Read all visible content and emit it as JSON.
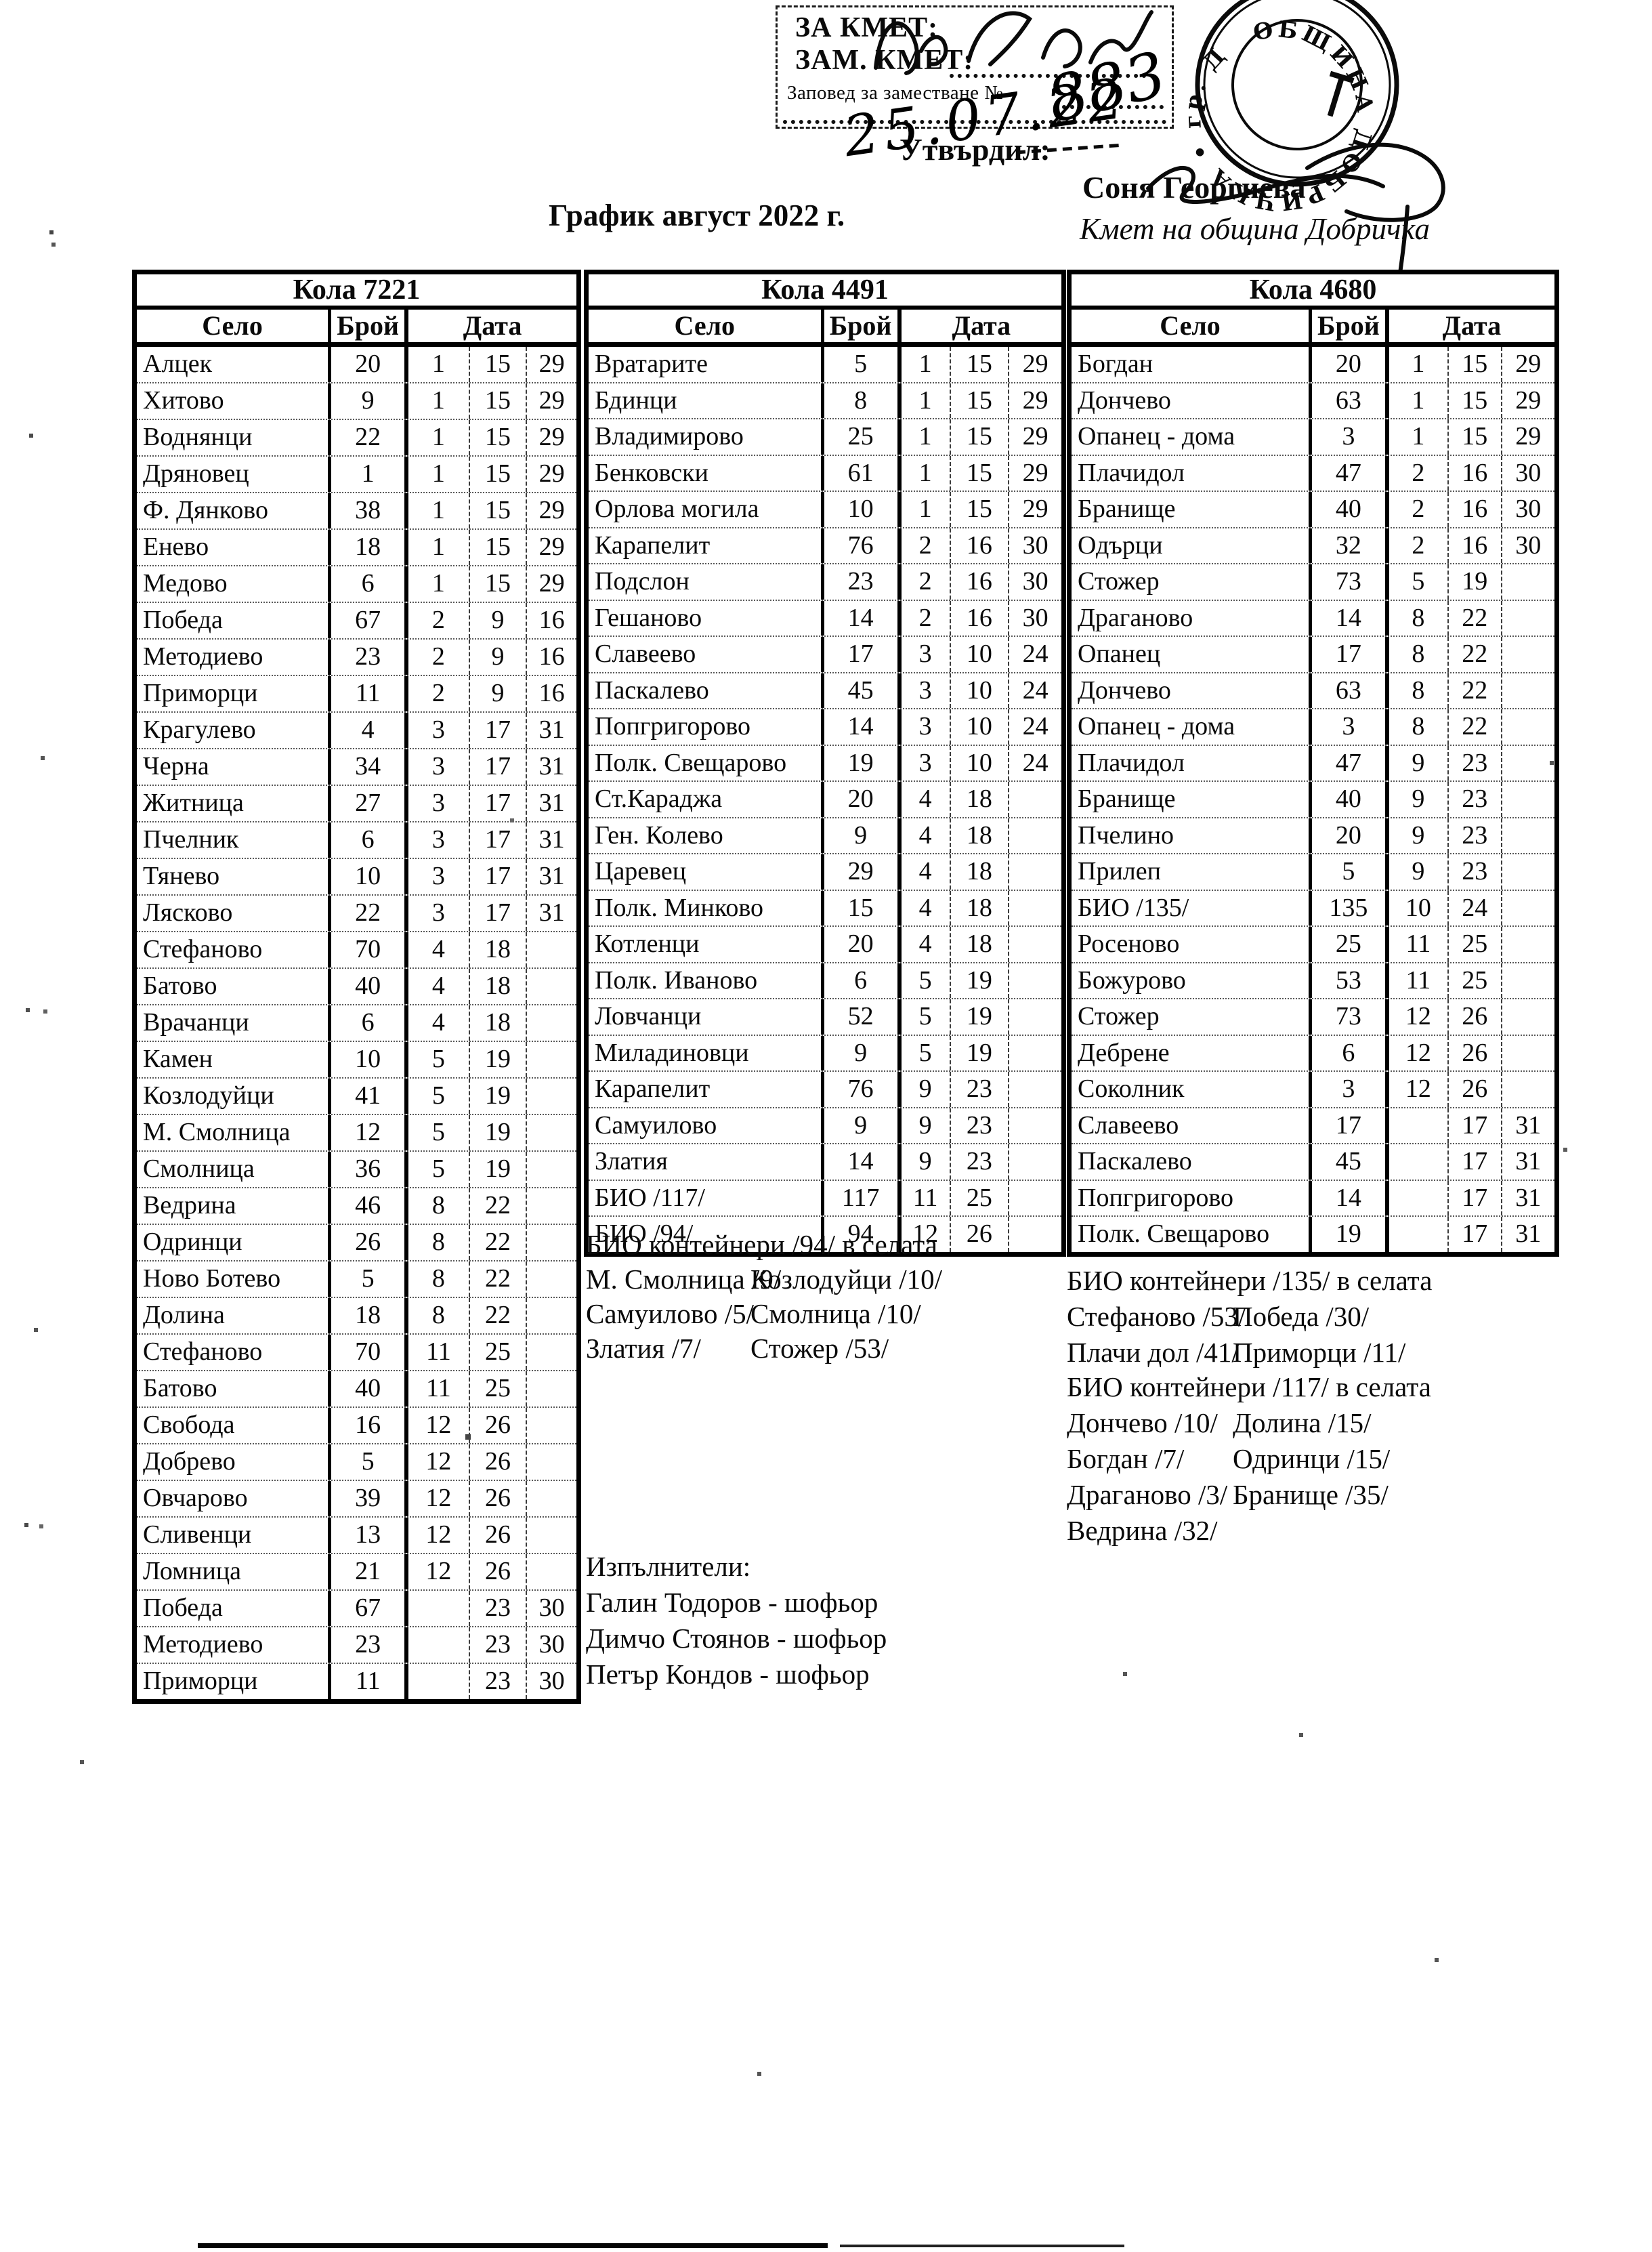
{
  "page": {
    "title": "График август 2022 г.",
    "approval_box": {
      "line1": "ЗА КМЕТ:",
      "line2": "ЗАМ. КМЕТ:",
      "line3": "Заповед за заместване №",
      "handwritten_signature": "Мл. Нейчев",
      "handwritten_number": "883",
      "handwritten_date": "25.07.22"
    },
    "approved_label": "Утвърдил:",
    "approver_name": "Соня Георгиева",
    "approver_title": "Кмет на община Добричка",
    "stamp": {
      "ring_text": "ОБЩИНА ДОБРИЧКА • гр. Добрич •"
    }
  },
  "tables": [
    {
      "car": "Кола 7221",
      "col_selo": "Село",
      "col_broy": "Брой",
      "col_data": "Дата",
      "rows": [
        [
          "Алцек",
          "20",
          "1",
          "15",
          "29"
        ],
        [
          "Хитово",
          "9",
          "1",
          "15",
          "29"
        ],
        [
          "Воднянци",
          "22",
          "1",
          "15",
          "29"
        ],
        [
          "Дряновец",
          "1",
          "1",
          "15",
          "29"
        ],
        [
          "Ф. Дянково",
          "38",
          "1",
          "15",
          "29"
        ],
        [
          "Енево",
          "18",
          "1",
          "15",
          "29"
        ],
        [
          "Медово",
          "6",
          "1",
          "15",
          "29"
        ],
        [
          "Победа",
          "67",
          "2",
          "9",
          "16"
        ],
        [
          "Методиево",
          "23",
          "2",
          "9",
          "16"
        ],
        [
          "Приморци",
          "11",
          "2",
          "9",
          "16"
        ],
        [
          "Крагулево",
          "4",
          "3",
          "17",
          "31"
        ],
        [
          "Черна",
          "34",
          "3",
          "17",
          "31"
        ],
        [
          "Житница",
          "27",
          "3",
          "17",
          "31"
        ],
        [
          "Пчелник",
          "6",
          "3",
          "17",
          "31"
        ],
        [
          "Тянево",
          "10",
          "3",
          "17",
          "31"
        ],
        [
          "Лясково",
          "22",
          "3",
          "17",
          "31"
        ],
        [
          "Стефаново",
          "70",
          "4",
          "18",
          ""
        ],
        [
          "Батово",
          "40",
          "4",
          "18",
          ""
        ],
        [
          "Врачанци",
          "6",
          "4",
          "18",
          ""
        ],
        [
          "Камен",
          "10",
          "5",
          "19",
          ""
        ],
        [
          "Козлодуйци",
          "41",
          "5",
          "19",
          ""
        ],
        [
          "М. Смолница",
          "12",
          "5",
          "19",
          ""
        ],
        [
          "Смолница",
          "36",
          "5",
          "19",
          ""
        ],
        [
          "Ведрина",
          "46",
          "8",
          "22",
          ""
        ],
        [
          "Одринци",
          "26",
          "8",
          "22",
          ""
        ],
        [
          "Ново Ботево",
          "5",
          "8",
          "22",
          ""
        ],
        [
          "Долина",
          "18",
          "8",
          "22",
          ""
        ],
        [
          "Стефаново",
          "70",
          "11",
          "25",
          ""
        ],
        [
          "Батово",
          "40",
          "11",
          "25",
          ""
        ],
        [
          "Свобода",
          "16",
          "12",
          "26",
          ""
        ],
        [
          "Добрево",
          "5",
          "12",
          "26",
          ""
        ],
        [
          "Овчарово",
          "39",
          "12",
          "26",
          ""
        ],
        [
          "Сливенци",
          "13",
          "12",
          "26",
          ""
        ],
        [
          "Ломница",
          "21",
          "12",
          "26",
          ""
        ],
        [
          "Победа",
          "67",
          "",
          "23",
          "30"
        ],
        [
          "Методиево",
          "23",
          "",
          "23",
          "30"
        ],
        [
          "Приморци",
          "11",
          "",
          "23",
          "30"
        ]
      ]
    },
    {
      "car": "Кола 4491",
      "col_selo": "Село",
      "col_broy": "Брой",
      "col_data": "Дата",
      "rows": [
        [
          "Вратарите",
          "5",
          "1",
          "15",
          "29"
        ],
        [
          "Бдинци",
          "8",
          "1",
          "15",
          "29"
        ],
        [
          "Владимирово",
          "25",
          "1",
          "15",
          "29"
        ],
        [
          "Бенковски",
          "61",
          "1",
          "15",
          "29"
        ],
        [
          "Орлова могила",
          "10",
          "1",
          "15",
          "29"
        ],
        [
          "Карапелит",
          "76",
          "2",
          "16",
          "30"
        ],
        [
          "Подслон",
          "23",
          "2",
          "16",
          "30"
        ],
        [
          "Гешаново",
          "14",
          "2",
          "16",
          "30"
        ],
        [
          "Славеево",
          "17",
          "3",
          "10",
          "24"
        ],
        [
          "Паскалево",
          "45",
          "3",
          "10",
          "24"
        ],
        [
          "Попгригорово",
          "14",
          "3",
          "10",
          "24"
        ],
        [
          "Полк. Свещарово",
          "19",
          "3",
          "10",
          "24"
        ],
        [
          "Ст.Караджа",
          "20",
          "4",
          "18",
          ""
        ],
        [
          "Ген. Колево",
          "9",
          "4",
          "18",
          ""
        ],
        [
          "Царевец",
          "29",
          "4",
          "18",
          ""
        ],
        [
          "Полк. Минково",
          "15",
          "4",
          "18",
          ""
        ],
        [
          "Котленци",
          "20",
          "4",
          "18",
          ""
        ],
        [
          "Полк. Иваново",
          "6",
          "5",
          "19",
          ""
        ],
        [
          "Ловчанци",
          "52",
          "5",
          "19",
          ""
        ],
        [
          "Миладиновци",
          "9",
          "5",
          "19",
          ""
        ],
        [
          "Карапелит",
          "76",
          "9",
          "23",
          ""
        ],
        [
          "Самуилово",
          "9",
          "9",
          "23",
          ""
        ],
        [
          "Златия",
          "14",
          "9",
          "23",
          ""
        ],
        [
          "БИО /117/",
          "117",
          "11",
          "25",
          ""
        ],
        [
          "БИО /94/",
          "94",
          "12",
          "26",
          ""
        ]
      ]
    },
    {
      "car": "Кола 4680",
      "col_selo": "Село",
      "col_broy": "Брой",
      "col_data": "Дата",
      "rows": [
        [
          "Богдан",
          "20",
          "1",
          "15",
          "29"
        ],
        [
          "Дончево",
          "63",
          "1",
          "15",
          "29"
        ],
        [
          "Опанец - дома",
          "3",
          "1",
          "15",
          "29"
        ],
        [
          "Плачидол",
          "47",
          "2",
          "16",
          "30"
        ],
        [
          "Бранище",
          "40",
          "2",
          "16",
          "30"
        ],
        [
          "Одърци",
          "32",
          "2",
          "16",
          "30"
        ],
        [
          "Стожер",
          "73",
          "5",
          "19",
          ""
        ],
        [
          "Драганово",
          "14",
          "8",
          "22",
          ""
        ],
        [
          "Опанец",
          "17",
          "8",
          "22",
          ""
        ],
        [
          "Дончево",
          "63",
          "8",
          "22",
          ""
        ],
        [
          "Опанец - дома",
          "3",
          "8",
          "22",
          ""
        ],
        [
          "Плачидол",
          "47",
          "9",
          "23",
          ""
        ],
        [
          "Бранище",
          "40",
          "9",
          "23",
          ""
        ],
        [
          "Пчелино",
          "20",
          "9",
          "23",
          ""
        ],
        [
          "Прилеп",
          "5",
          "9",
          "23",
          ""
        ],
        [
          "БИО /135/",
          "135",
          "10",
          "24",
          ""
        ],
        [
          "Росеново",
          "25",
          "11",
          "25",
          ""
        ],
        [
          "Божурово",
          "53",
          "11",
          "25",
          ""
        ],
        [
          "Стожер",
          "73",
          "12",
          "26",
          ""
        ],
        [
          "Дебрене",
          "6",
          "12",
          "26",
          ""
        ],
        [
          "Соколник",
          "3",
          "12",
          "26",
          ""
        ],
        [
          "Славеево",
          "17",
          "",
          "17",
          "31"
        ],
        [
          "Паскалево",
          "45",
          "",
          "17",
          "31"
        ],
        [
          "Попгригорово",
          "14",
          "",
          "17",
          "31"
        ],
        [
          "Полк. Свещарово",
          "19",
          "",
          "17",
          "31"
        ]
      ]
    }
  ],
  "notes_left": {
    "title": "БИО контейнери /94/ в селата",
    "pairs": [
      [
        "М. Смолница /9/",
        "Козлодуйци /10/"
      ],
      [
        "Самуилово /5/",
        "Смолница /10/"
      ],
      [
        "Златия /7/",
        "Стожер /53/"
      ]
    ]
  },
  "notes_right": [
    {
      "title": "БИО контейнери /135/ в селата",
      "pairs": [
        [
          "Стефаново /53/",
          "Победа /30/"
        ],
        [
          "Плачи дол /41/",
          "Приморци /11/"
        ]
      ]
    },
    {
      "title": "БИО контейнери /117/ в селата",
      "pairs": [
        [
          "Дончево /10/",
          "Долина /15/"
        ],
        [
          "Богдан /7/",
          "Одринци /15/"
        ],
        [
          "Драганово /3/",
          "Бранище /35/"
        ],
        [
          "Ведрина /32/",
          ""
        ]
      ]
    }
  ],
  "executors": {
    "title": "Изпълнители:",
    "items": [
      "Галин Тодоров - шофьор",
      "Димчо Стоянов - шофьор",
      "Петър Кондов - шофьор"
    ]
  }
}
